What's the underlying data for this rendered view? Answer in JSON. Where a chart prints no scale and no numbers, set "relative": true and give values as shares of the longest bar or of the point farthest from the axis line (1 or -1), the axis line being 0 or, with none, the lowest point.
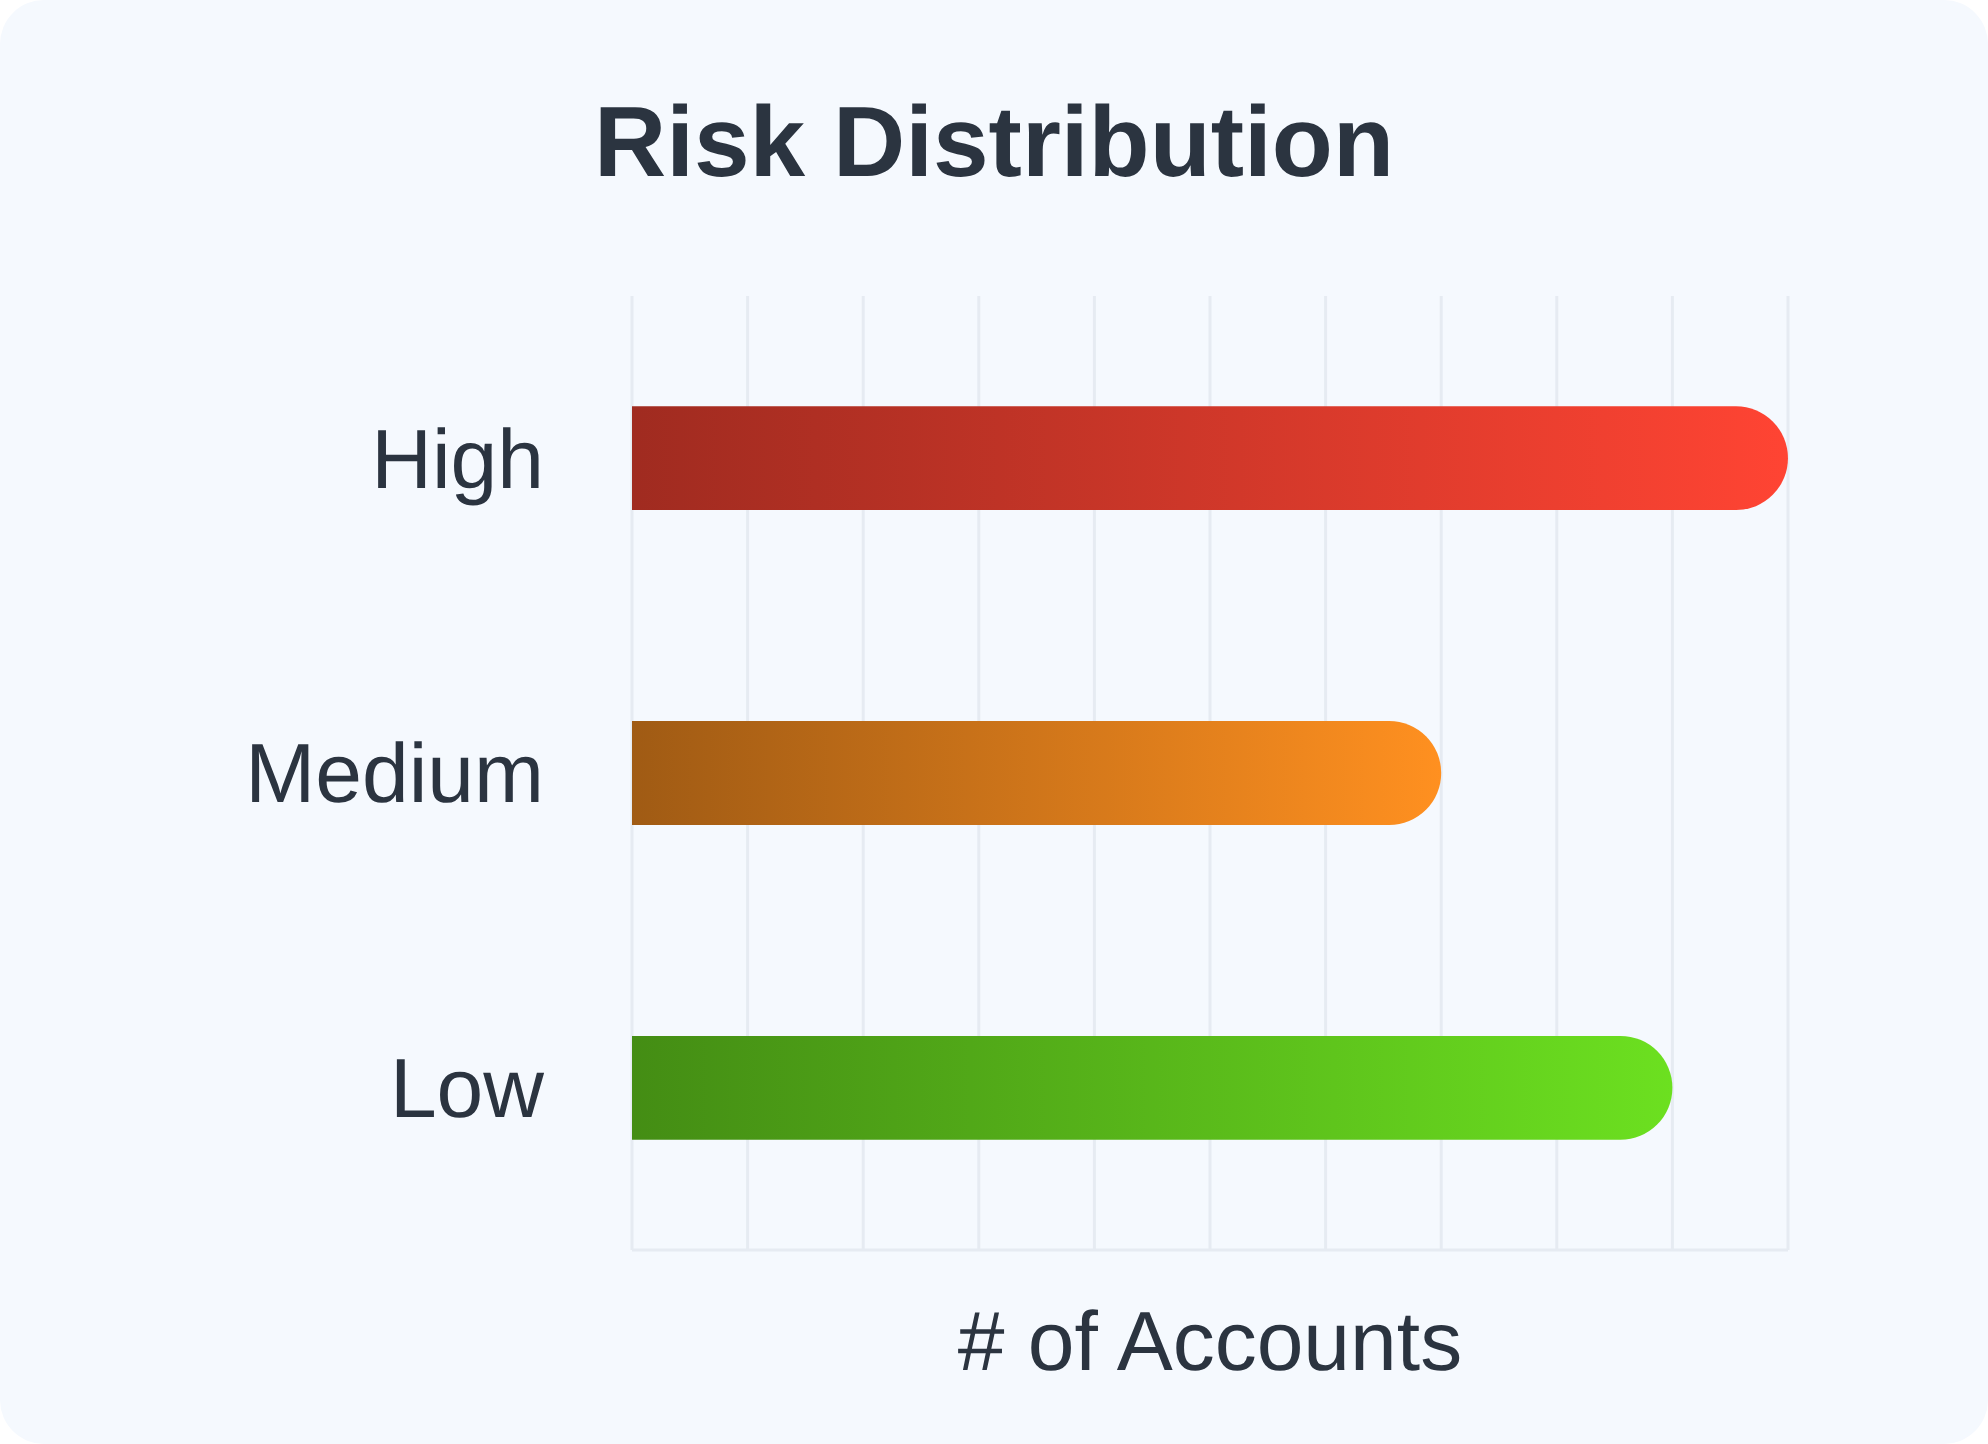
{
  "chart_data": {
    "type": "bar",
    "title": "Risk Distribution",
    "xlabel": "# of Accounts",
    "orientation": "horizontal",
    "relative": true,
    "categories": [
      "High",
      "Medium",
      "Low"
    ],
    "values": [
      1,
      0.7,
      0.9
    ],
    "colors": [
      "#ff4433",
      "#ff9020",
      "#6ce020"
    ],
    "grid": "x"
  }
}
